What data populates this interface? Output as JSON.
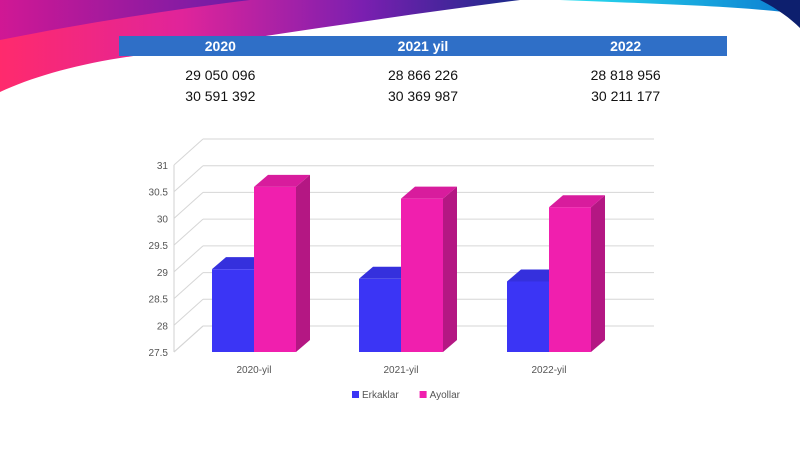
{
  "table": {
    "headers": [
      "2020",
      "2021 yil",
      "2022"
    ],
    "rows": [
      [
        "29 050 096",
        "28 866 226",
        "28 818 956"
      ],
      [
        "30 591 392",
        "30 369 987",
        "30 211 177"
      ]
    ]
  },
  "colors": {
    "header_bar": "#2f6fc7",
    "series_erkaklar": "#3b35f5",
    "series_ayollar": "#f01fae"
  },
  "chart_data": {
    "type": "bar",
    "categories": [
      "2020-yil",
      "2021-yil",
      "2022-yil"
    ],
    "series": [
      {
        "name": "Erkaklar",
        "values": [
          29.05,
          28.87,
          28.82
        ]
      },
      {
        "name": "Ayollar",
        "values": [
          30.59,
          30.37,
          30.21
        ]
      }
    ],
    "ylim": [
      27.5,
      31
    ],
    "yticks": [
      "27.5",
      "28",
      "28.5",
      "29",
      "29.5",
      "30",
      "30.5",
      "31"
    ],
    "grid": true,
    "legend": "bottom",
    "three_d": true
  }
}
